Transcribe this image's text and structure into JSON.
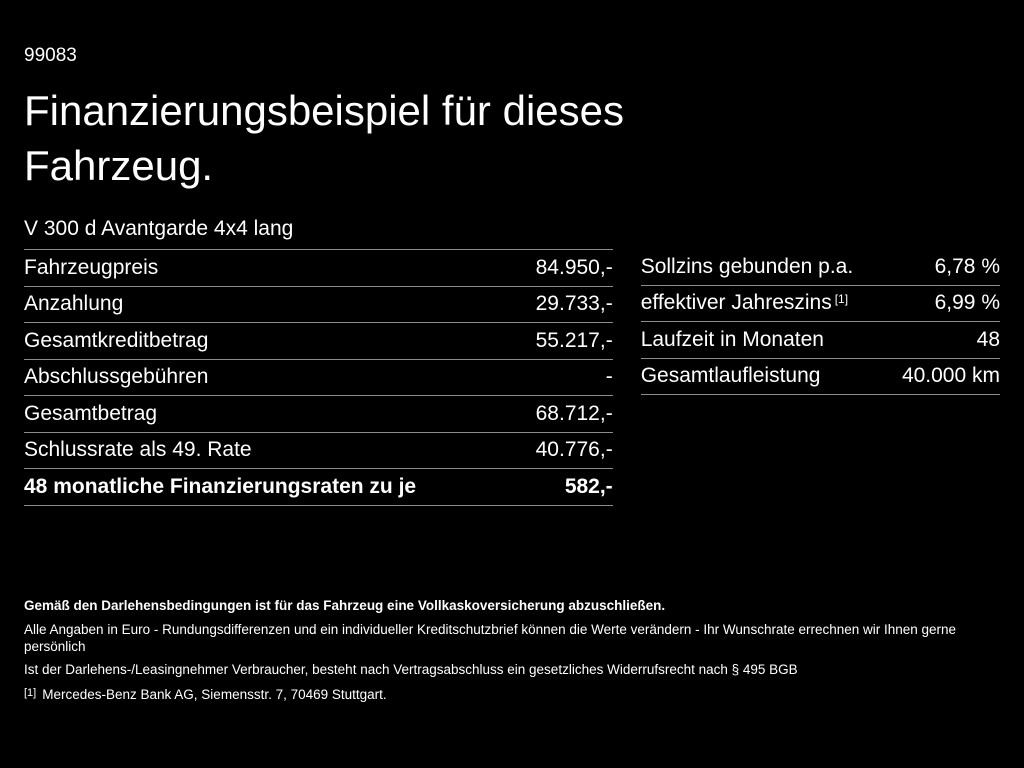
{
  "page": {
    "doc_number": "99083",
    "title": "Finanzierungsbeispiel für dieses Fahrzeug.",
    "vehicle_model": "V 300 d Avantgarde 4x4 lang"
  },
  "left_table": {
    "rows": [
      {
        "label": "Fahrzeugpreis",
        "value": "84.950,-"
      },
      {
        "label": "Anzahlung",
        "value": "29.733,-"
      },
      {
        "label": "Gesamtkreditbetrag",
        "value": "55.217,-"
      },
      {
        "label": "Abschlussgebühren",
        "value": "-"
      },
      {
        "label": "Gesamtbetrag",
        "value": "68.712,-"
      },
      {
        "label": "Schlussrate als 49. Rate",
        "value": "40.776,-"
      },
      {
        "label": "48 monatliche Finanzierungsraten zu je",
        "value": "582,-"
      }
    ]
  },
  "right_table": {
    "rows": [
      {
        "label": "Sollzins gebunden p.a.",
        "sup": "",
        "value": "6,78 %"
      },
      {
        "label": "effektiver Jahreszins",
        "sup": "[1]",
        "value": "6,99 %"
      },
      {
        "label": "Laufzeit in Monaten",
        "sup": "",
        "value": "48"
      },
      {
        "label": "Gesamtlaufleistung",
        "sup": "",
        "value": "40.000 km"
      }
    ]
  },
  "footer": {
    "insurance_note": "Gemäß den Darlehensbedingungen ist für das Fahrzeug eine Vollkaskoversicherung abzuschließen.",
    "disclaimer_line1": "Alle Angaben in Euro - Rundungsdifferenzen und ein individueller Kreditschutzbrief können die Werte verändern - Ihr Wunschrate errechnen wir Ihnen gerne persönlich",
    "disclaimer_line2": "Ist der Darlehens-/Leasingnehmer Verbraucher, besteht nach Vertragsabschluss ein gesetzliches Widerrufsrecht nach § 495 BGB",
    "footnote_marker": "[1]",
    "footnote_text": "Mercedes-Benz Bank AG, Siemensstr. 7, 70469 Stuttgart."
  },
  "colors": {
    "background": "#000000",
    "text": "#ffffff",
    "divider": "#8c8c8c"
  }
}
